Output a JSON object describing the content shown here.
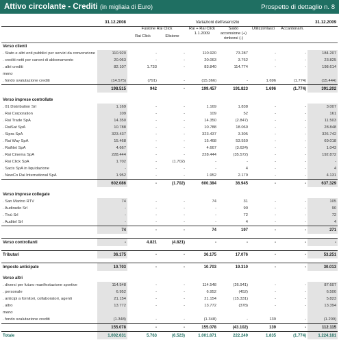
{
  "header": {
    "title": "Attivo circolante - Crediti",
    "subtitle": "(in migliaia di Euro)",
    "right": "Prospetto di dettaglio n. 8"
  },
  "columns": {
    "date_start": "31.12.2008",
    "variations_title": "Variazioni dell'esercizio",
    "date_end": "31.12.2009",
    "fusione": "Fusione Rai Click",
    "rai_click": "Rai Click",
    "elisione": "Elisione",
    "rai_plus": "Rai + Rai Click 1.1.2009",
    "saldo": "Saldo accensione (+) rimborsi (-)",
    "utilizzi": "Utilizzi/rilasci",
    "accantonam": "Accantonam."
  },
  "rows": [
    {
      "type": "sec",
      "label": "Verso clienti",
      "v": [
        "",
        "",
        "",
        "",
        "",
        "",
        "",
        ""
      ]
    },
    {
      "type": "item",
      "label": ". Stato e altri enti pubblici per servizi da convenzione",
      "v": [
        "110.920",
        "-",
        "-",
        "110.920",
        "73.287",
        "-",
        "-",
        "184.207"
      ]
    },
    {
      "type": "item",
      "label": ". crediti netti per canoni di abbonamento",
      "v": [
        "20.063",
        "-",
        "-",
        "20.063",
        "3.762",
        "-",
        "-",
        "23.825"
      ]
    },
    {
      "type": "item",
      "label": ". altri crediti",
      "v": [
        "82.107",
        "1.733",
        "-",
        "83.840",
        "114.774",
        "-",
        "-",
        "198.614"
      ]
    },
    {
      "type": "item",
      "label": "meno",
      "ital": true,
      "v": [
        "",
        "",
        "",
        "",
        "",
        "",
        "",
        ""
      ]
    },
    {
      "type": "item",
      "label": ". fondo svalutazione crediti",
      "v": [
        "(14.575)",
        "(791)",
        "-",
        "(15.366)",
        "-",
        "1.696",
        "(1.774)",
        "(15.444)"
      ]
    },
    {
      "type": "sub",
      "label": "",
      "v": [
        "198.515",
        "942",
        "-",
        "199.457",
        "191.823",
        "1.696",
        "(1.774)",
        "391.202"
      ]
    },
    {
      "type": "sec",
      "label": "Verso imprese controllate",
      "v": [
        "",
        "",
        "",
        "",
        "",
        "",
        "",
        ""
      ]
    },
    {
      "type": "item",
      "label": ". 01 Distribution Srl",
      "v": [
        "1.169",
        "-",
        "-",
        "1.169",
        "1.838",
        "-",
        "-",
        "3.007"
      ]
    },
    {
      "type": "item",
      "label": ". Rai Corporation",
      "v": [
        "109",
        "-",
        "-",
        "109",
        "52",
        "-",
        "-",
        "161"
      ]
    },
    {
      "type": "item",
      "label": ". Rai Trade SpA",
      "v": [
        "14.350",
        "-",
        "-",
        "14.350",
        "(2.847)",
        "-",
        "-",
        "11.503"
      ]
    },
    {
      "type": "item",
      "label": ". RaiSat SpA",
      "v": [
        "10.788",
        "-",
        "-",
        "10.788",
        "18.060",
        "-",
        "-",
        "28.848"
      ]
    },
    {
      "type": "item",
      "label": ". Sipra SpA",
      "v": [
        "323.437",
        "-",
        "-",
        "323.437",
        "3.305",
        "-",
        "-",
        "326.742"
      ]
    },
    {
      "type": "item",
      "label": ". Rai Way SpA",
      "v": [
        "15.468",
        "-",
        "-",
        "15.468",
        "53.550",
        "-",
        "-",
        "69.018"
      ]
    },
    {
      "type": "item",
      "label": ". RaiNet SpA",
      "v": [
        "4.667",
        "-",
        "-",
        "4.667",
        "(3.624)",
        "-",
        "-",
        "1.043"
      ]
    },
    {
      "type": "item",
      "label": ". Rai Cinema SpA",
      "v": [
        "228.444",
        "-",
        "-",
        "228.444",
        "(35.572)",
        "-",
        "-",
        "192.872"
      ]
    },
    {
      "type": "item",
      "label": ". Rai Click SpA",
      "v": [
        "1.702",
        "-",
        "(1.702)",
        "-",
        "-",
        "-",
        "-",
        "-"
      ]
    },
    {
      "type": "item",
      "label": ". Sacis SpA in liquidazione",
      "v": [
        "-",
        "-",
        "-",
        "-",
        "4",
        "-",
        "-",
        "4"
      ]
    },
    {
      "type": "item",
      "label": ". NewCo Rai International SpA",
      "v": [
        "1.952",
        "-",
        "-",
        "1.952",
        "2.179",
        "-",
        "-",
        "4.131"
      ]
    },
    {
      "type": "sub",
      "label": "",
      "v": [
        "602.086",
        "-",
        "(1.702)",
        "600.384",
        "36.945",
        "-",
        "-",
        "637.329"
      ]
    },
    {
      "type": "sec",
      "label": "Verso imprese collegate",
      "v": [
        "",
        "",
        "",
        "",
        "",
        "",
        "",
        ""
      ]
    },
    {
      "type": "item",
      "label": ". San Marino RTV",
      "v": [
        "74",
        "-",
        "-",
        "74",
        "31",
        "-",
        "-",
        "105"
      ]
    },
    {
      "type": "item",
      "label": ". Audiradio Srl",
      "v": [
        "-",
        "-",
        "-",
        "-",
        "90",
        "-",
        "-",
        "90"
      ]
    },
    {
      "type": "item",
      "label": ". Tivù Srl",
      "v": [
        "-",
        "-",
        "-",
        "-",
        "72",
        "-",
        "-",
        "72"
      ]
    },
    {
      "type": "item",
      "label": ". Auditel Srl",
      "v": [
        "-",
        "-",
        "-",
        "-",
        "4",
        "-",
        "-",
        "4"
      ]
    },
    {
      "type": "sub",
      "label": "",
      "v": [
        "74",
        "-",
        "-",
        "74",
        "197",
        "-",
        "-",
        "271"
      ]
    },
    {
      "type": "major",
      "label": "Verso controllanti",
      "v": [
        "-",
        "4.821",
        "(4.821)",
        "-",
        "-",
        "-",
        "-",
        "-"
      ]
    },
    {
      "type": "major",
      "label": "Tributari",
      "v": [
        "36.175",
        "-",
        "-",
        "36.175",
        "17.076",
        "-",
        "-",
        "53.251"
      ]
    },
    {
      "type": "major",
      "label": "Imposte anticipate",
      "v": [
        "10.703",
        "-",
        "-",
        "10.703",
        "19.310",
        "-",
        "-",
        "30.013"
      ]
    },
    {
      "type": "sec",
      "label": "Verso altri",
      "v": [
        "",
        "",
        "",
        "",
        "",
        "",
        "",
        ""
      ]
    },
    {
      "type": "item",
      "label": ". diversi per futuro manifestazione sportive",
      "v": [
        "114.548",
        "-",
        "-",
        "114.548",
        "(26.941)",
        "-",
        "-",
        "87.607"
      ]
    },
    {
      "type": "item",
      "label": ". personale",
      "v": [
        "6.952",
        "-",
        "-",
        "6.952",
        "(452)",
        "-",
        "-",
        "6.500"
      ]
    },
    {
      "type": "item",
      "label": ". anticipi a fornitori, collaboratori, agenti",
      "v": [
        "21.154",
        "-",
        "-",
        "21.154",
        "(15.331)",
        "-",
        "-",
        "5.823"
      ]
    },
    {
      "type": "item",
      "label": ". altro",
      "v": [
        "13.772",
        "-",
        "-",
        "13.772",
        "(378)",
        "-",
        "-",
        "13.394"
      ]
    },
    {
      "type": "item",
      "label": "meno",
      "ital": true,
      "v": [
        "",
        "",
        "",
        "",
        "",
        "",
        "",
        ""
      ]
    },
    {
      "type": "item",
      "label": ". fondo svalutazione crediti",
      "v": [
        "(1.348)",
        "-",
        "-",
        "(1.348)",
        "-",
        "139",
        "-",
        "(1.209)"
      ]
    },
    {
      "type": "sub",
      "label": "",
      "v": [
        "155.078",
        "-",
        "-",
        "155.078",
        "(43.102)",
        "139",
        "-",
        "112.115"
      ]
    },
    {
      "type": "total",
      "label": "Totale",
      "v": [
        "1.002.631",
        "5.763",
        "(6.523)",
        "1.001.871",
        "222.249",
        "1.835",
        "(1.774)",
        "1.224.181"
      ]
    }
  ]
}
